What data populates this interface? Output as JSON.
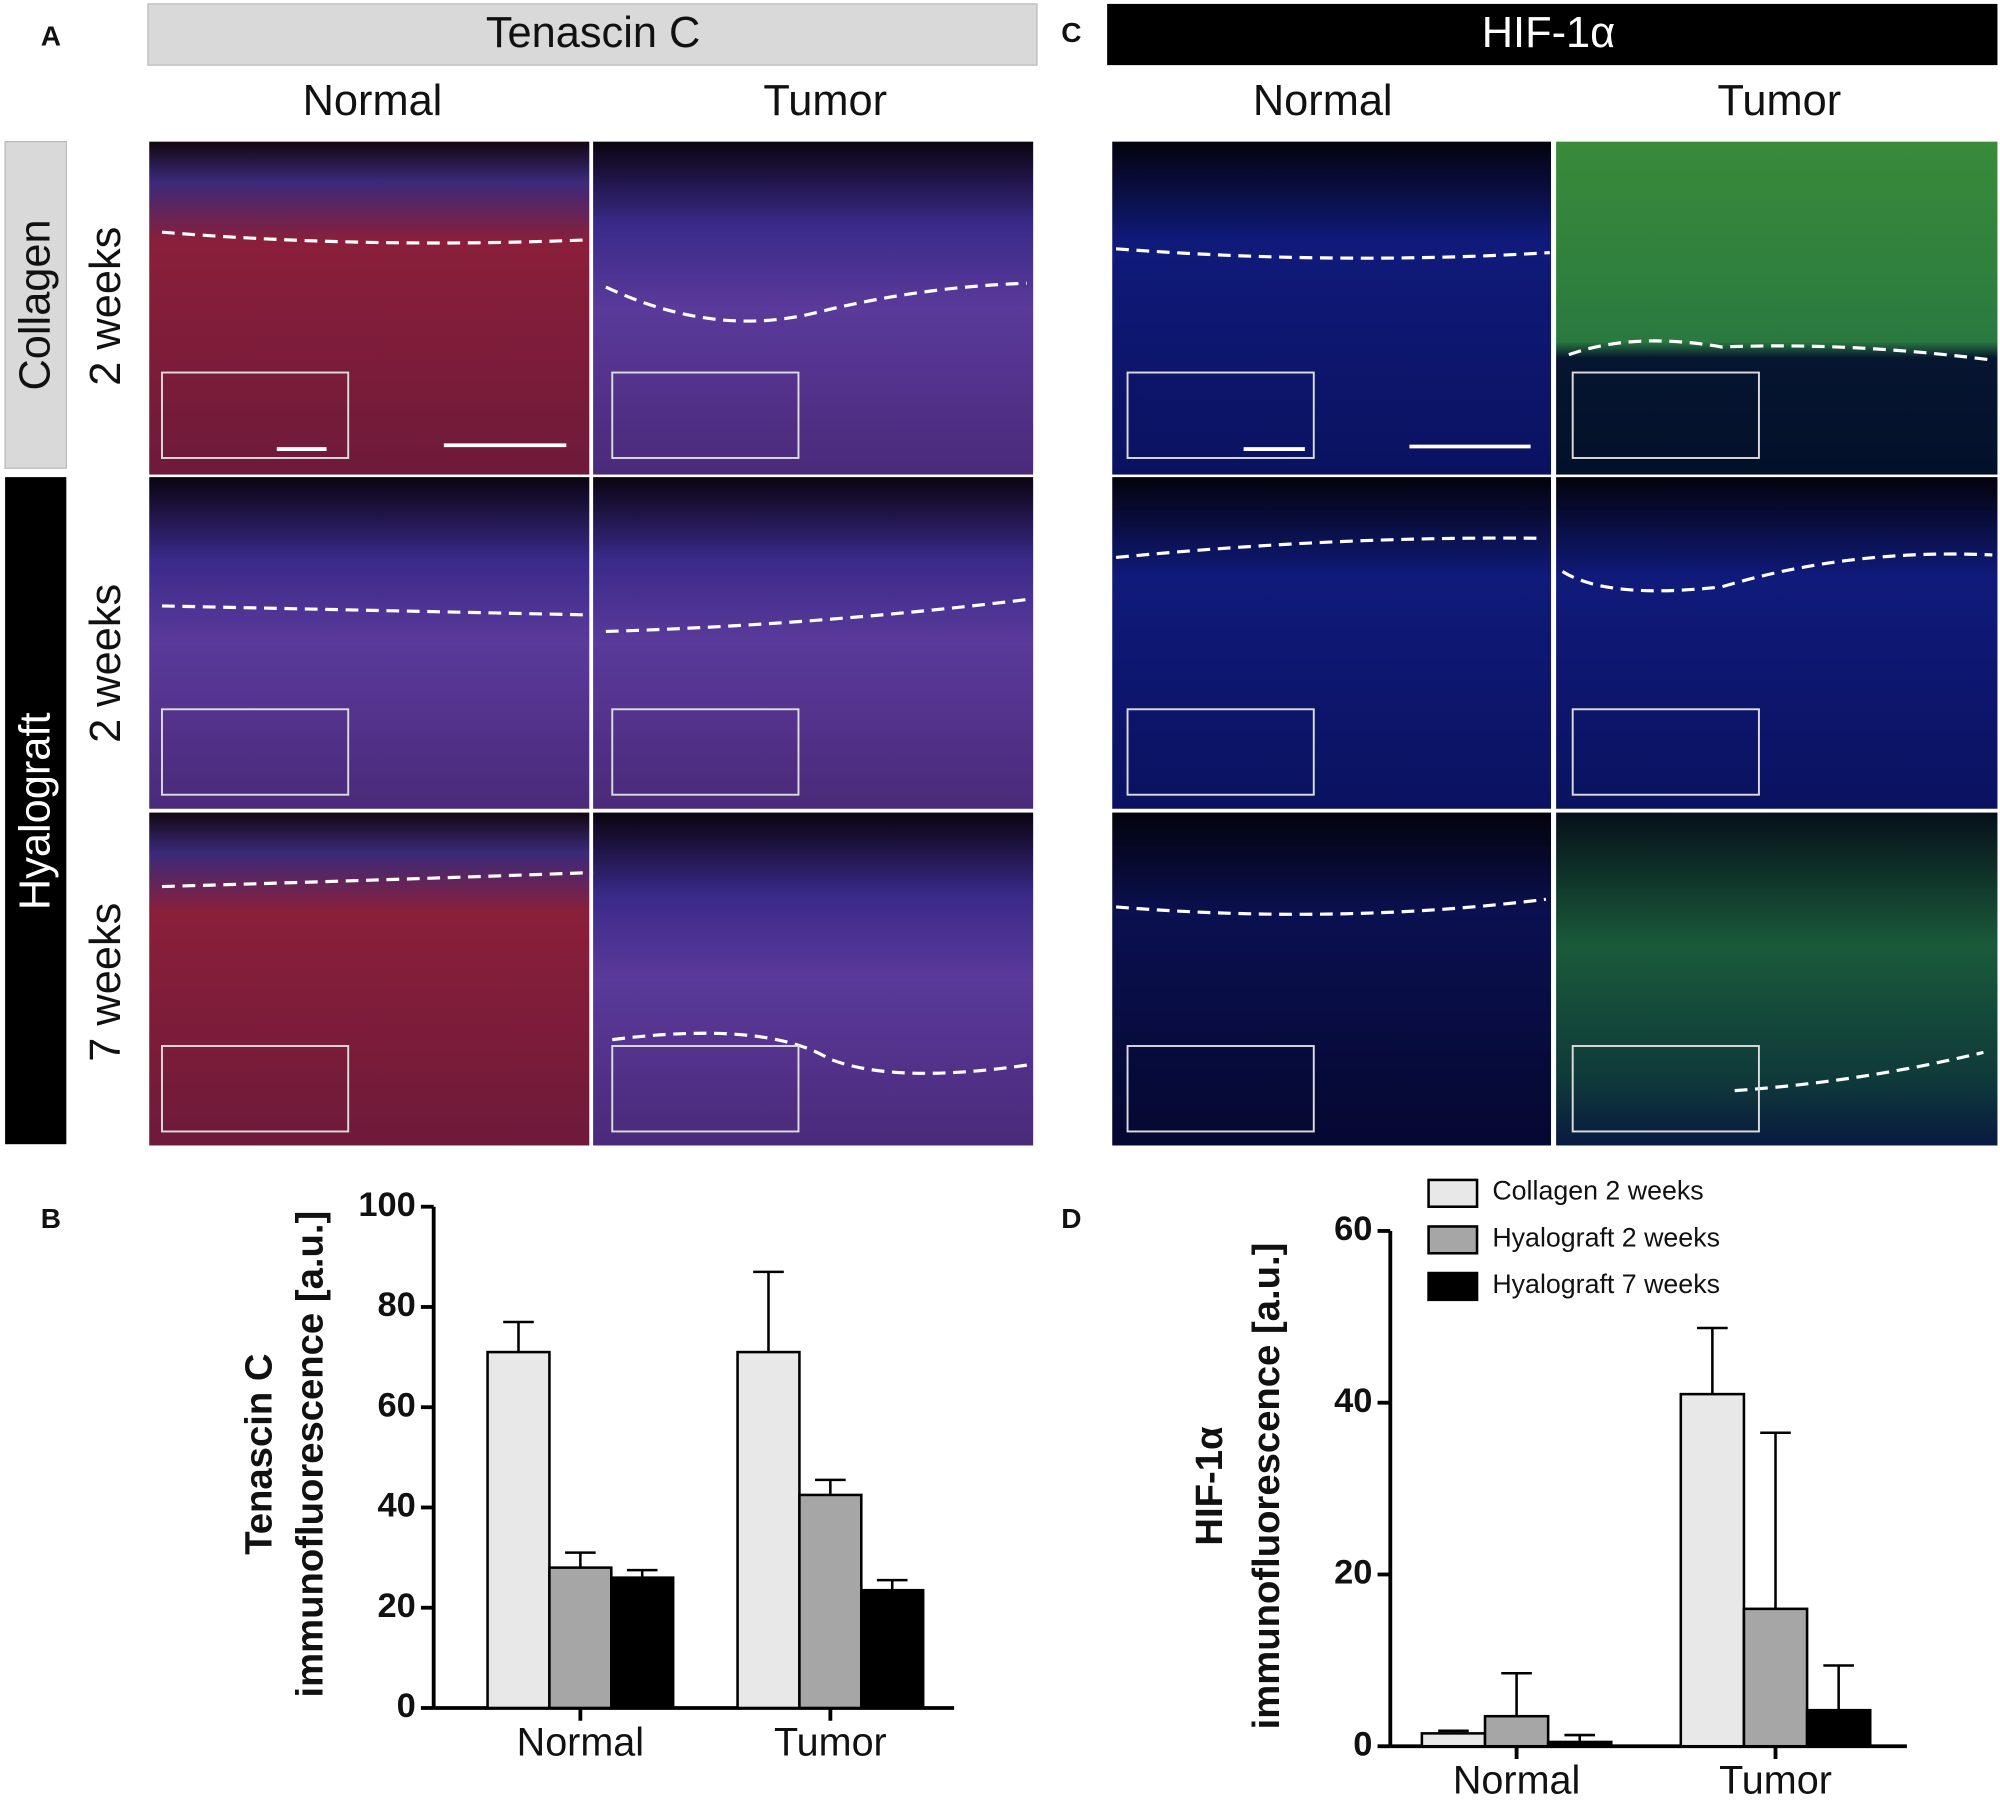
{
  "panels": {
    "a": "A",
    "b": "B",
    "c": "C",
    "d": "D",
    "tenascin_title": "Tenascin C",
    "hif_title": "HIF-1α",
    "columns": [
      "Normal",
      "Tumor",
      "Normal",
      "Tumor"
    ],
    "collagen": "Collagen",
    "hyalograft": "Hyalograft",
    "rows": [
      "2 weeks",
      "2 weeks",
      "7 weeks"
    ]
  },
  "chart_data": [
    {
      "type": "bar",
      "ylabel": [
        "Tenascin C",
        "immunofluorescence  [a.u.]"
      ],
      "categories": [
        "Normal",
        "Tumor"
      ],
      "series": [
        {
          "color": "#e8e8e8",
          "values": [
            71,
            71
          ],
          "errors": [
            6,
            16
          ]
        },
        {
          "color": "#a6a6a6",
          "values": [
            28,
            42.5
          ],
          "errors": [
            3,
            3
          ]
        },
        {
          "color": "#000000",
          "values": [
            26,
            23.5
          ],
          "errors": [
            1.5,
            2
          ]
        }
      ],
      "ylim": [
        0,
        100
      ],
      "yticks": [
        0,
        20,
        40,
        60,
        80,
        100
      ]
    },
    {
      "type": "bar",
      "ylabel": [
        "HIF-1α",
        "immunofluorescence  [a.u.]"
      ],
      "categories": [
        "Normal",
        "Tumor"
      ],
      "series": [
        {
          "name": "Collagen 2 weeks",
          "color": "#e8e8e8",
          "values": [
            1.5,
            41
          ],
          "errors": [
            0.3,
            7.7
          ]
        },
        {
          "name": "Hyalograft 2 weeks",
          "color": "#a6a6a6",
          "values": [
            3.5,
            16
          ],
          "errors": [
            5,
            20.5
          ]
        },
        {
          "name": "Hyalograft 7 weeks",
          "color": "#000000",
          "values": [
            0.5,
            4.2
          ],
          "errors": [
            0.8,
            5.2
          ]
        }
      ],
      "ylim": [
        0,
        60
      ],
      "yticks": [
        0,
        20,
        40,
        60
      ],
      "legend": "top-left"
    }
  ]
}
